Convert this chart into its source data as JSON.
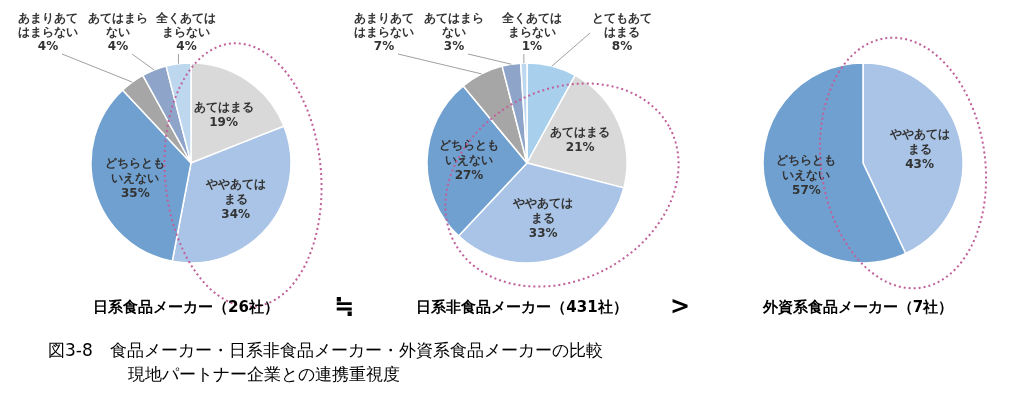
{
  "chart_data": [
    {
      "type": "pie",
      "title": "日系食品メーカー（26社）",
      "categories": [
        "あてはまる",
        "ややあてはまる",
        "どちらともいえない",
        "あまりあてはまらない",
        "あてはまらない",
        "全くあてはまらない"
      ],
      "values": [
        19,
        34,
        35,
        4,
        4,
        4
      ],
      "value_labels": [
        "19%",
        "34%",
        "35%",
        "4%",
        "4%",
        "4%"
      ],
      "colors": [
        "#d9d9d9",
        "#a9c4e6",
        "#6fa0d0",
        "#a6a6a6",
        "#8ea4c8",
        "#bdd7ee"
      ],
      "legend": false,
      "annotations": [
        "≒"
      ]
    },
    {
      "type": "pie",
      "title": "日系非食品メーカー（431社）",
      "categories": [
        "とてもあてはまる",
        "あてはまる",
        "ややあてはまる",
        "どちらともいえない",
        "あまりあてはまらない",
        "あてはまらない",
        "全くあてはまらない"
      ],
      "values": [
        8,
        21,
        33,
        27,
        7,
        3,
        1
      ],
      "value_labels": [
        "8%",
        "21%",
        "33%",
        "27%",
        "7%",
        "3%",
        "1%"
      ],
      "colors": [
        "#a8d0ec",
        "#d9d9d9",
        "#a9c4e6",
        "#6fa0d0",
        "#a6a6a6",
        "#8ea4c8",
        "#bdd7ee"
      ],
      "legend": false,
      "annotations": [
        ">"
      ]
    },
    {
      "type": "pie",
      "title": "外資系食品メーカー（7社）",
      "categories": [
        "ややあてはまる",
        "どちらともいえない"
      ],
      "values": [
        43,
        57
      ],
      "value_labels": [
        "43%",
        "57%"
      ],
      "colors": [
        "#a9c4e6",
        "#6fa0d0"
      ],
      "legend": false,
      "annotations": [
        "図3-8　食品メーカー・日系非食品メーカー・外資系食品メーカーの比較",
        "現地パートナー企業との連携重視度"
      ]
    }
  ]
}
